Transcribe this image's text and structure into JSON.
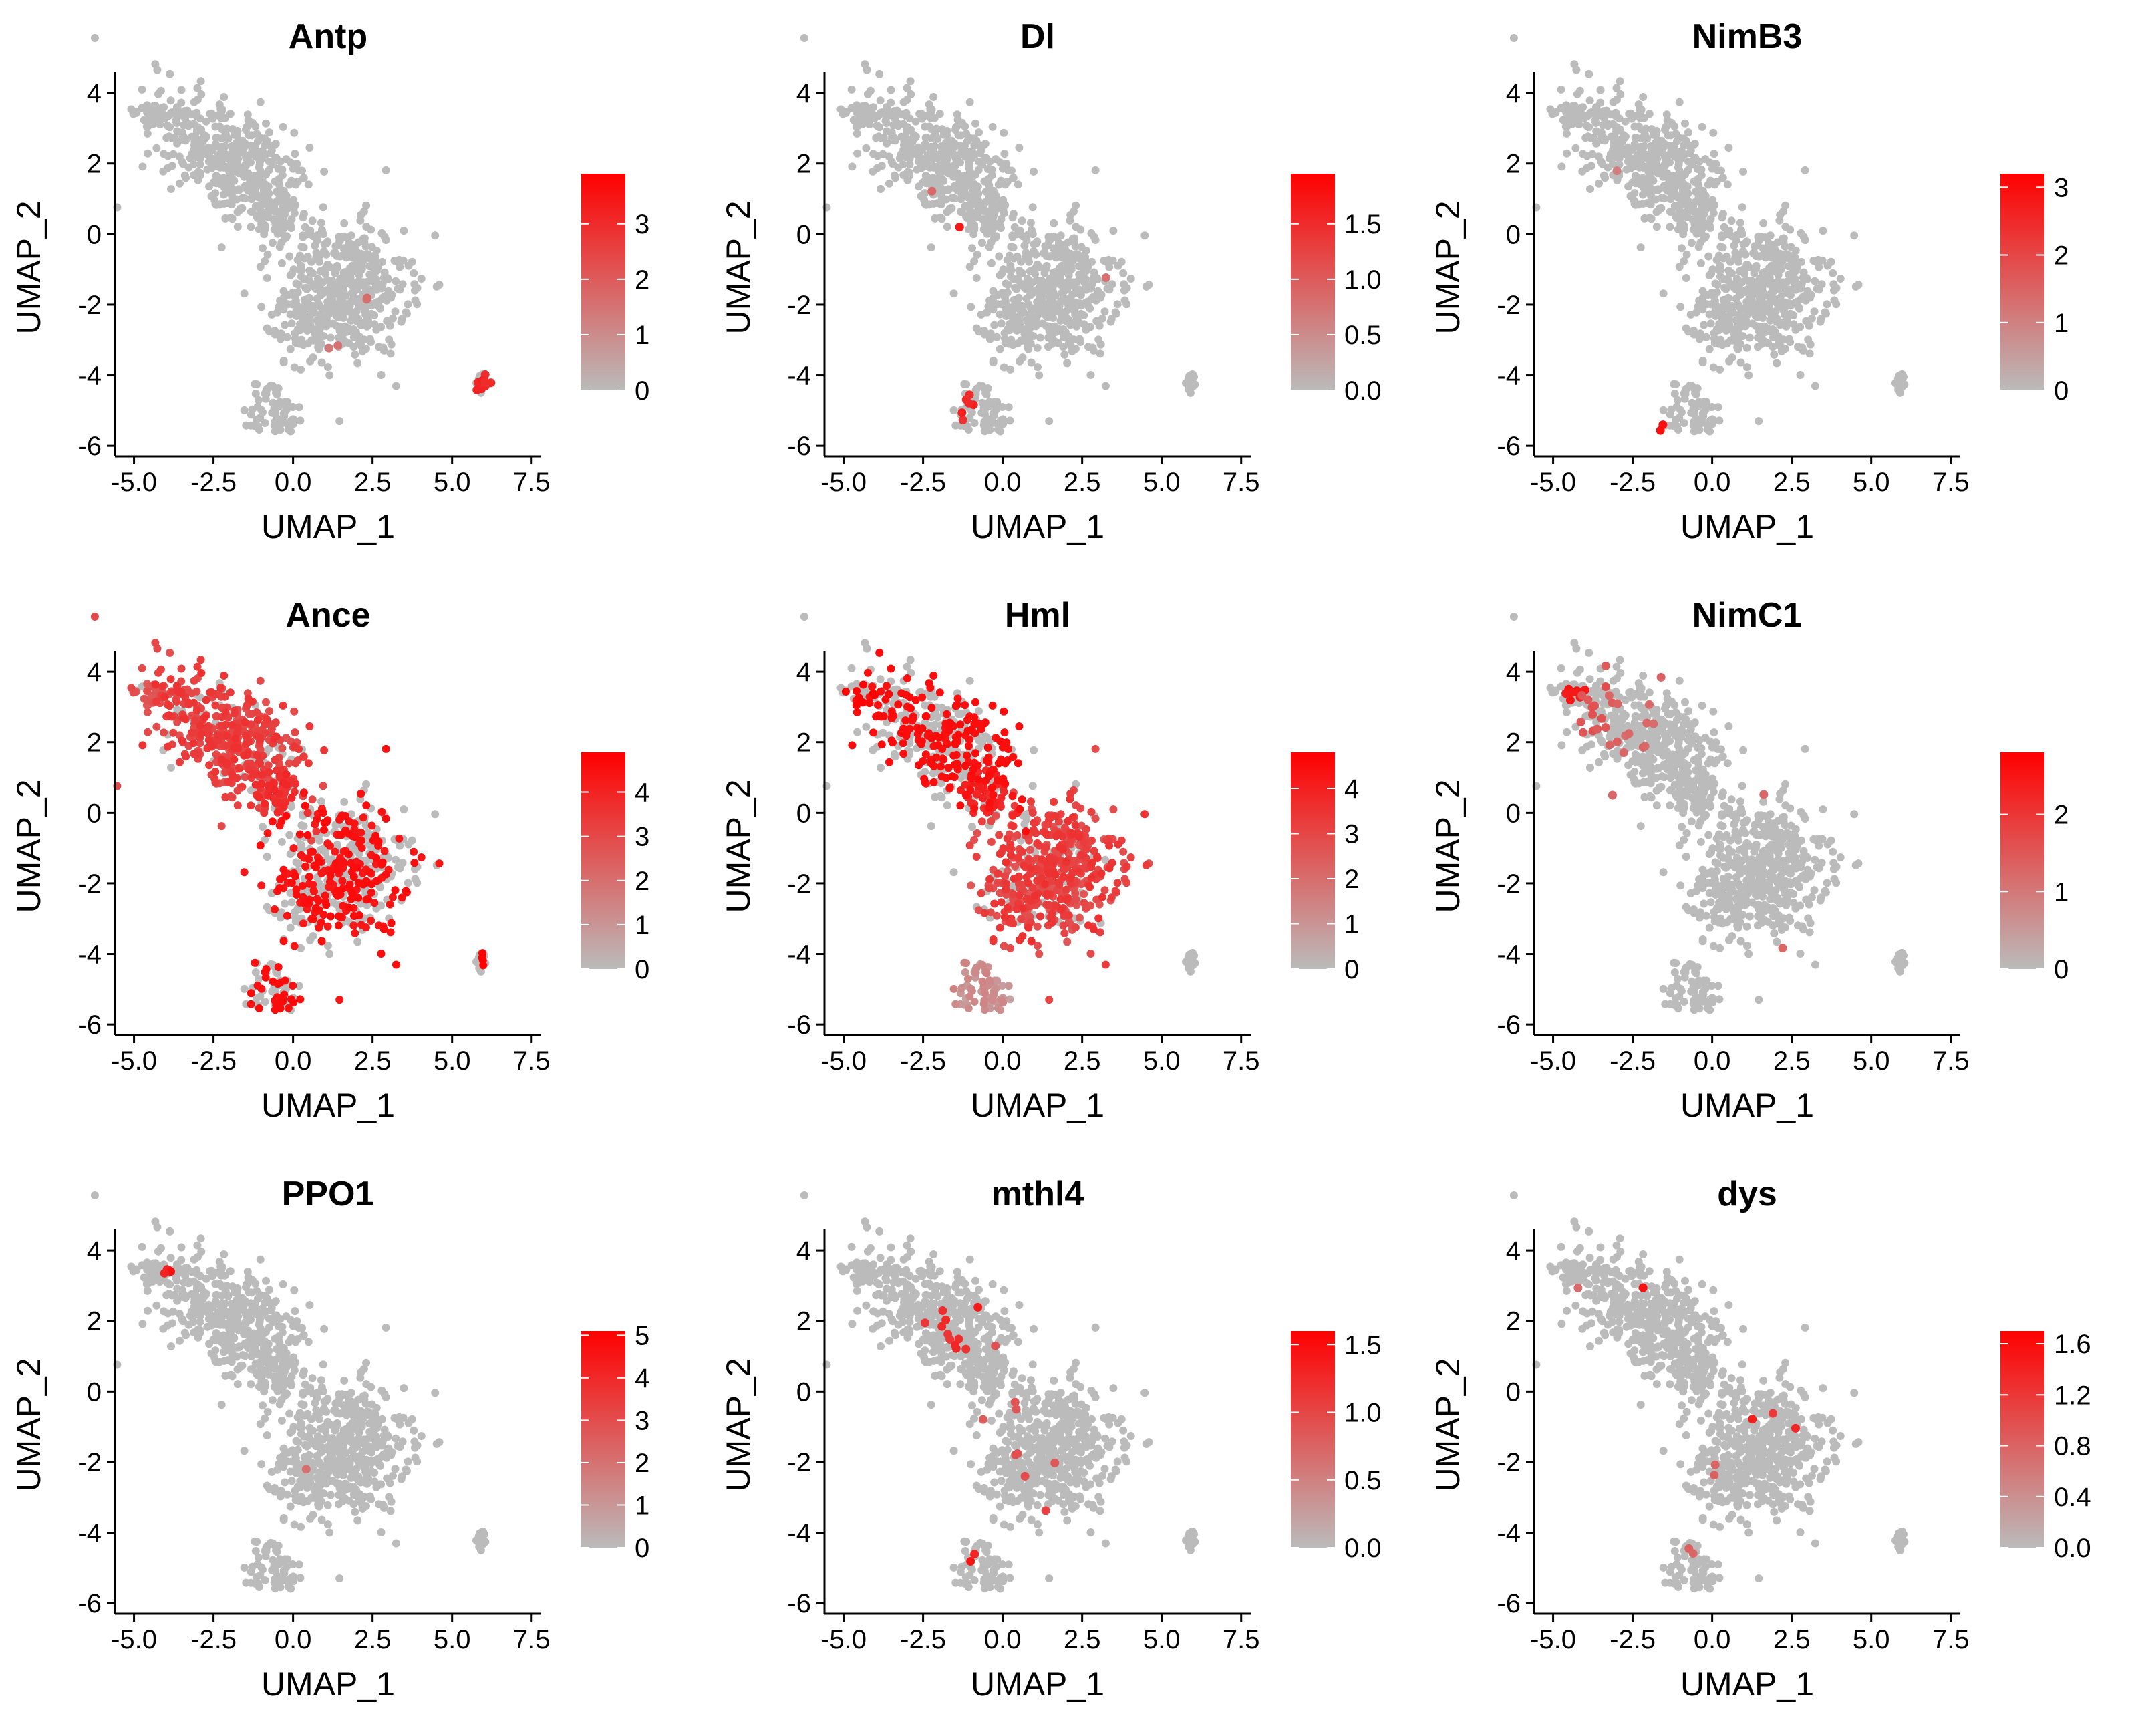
{
  "chart_data": [
    {
      "type": "scatter",
      "title": "Antp",
      "xlabel": "UMAP_1",
      "ylabel": "UMAP_2",
      "xlim": [
        -5.6,
        7.8
      ],
      "ylim": [
        -6.3,
        4.4
      ],
      "xticks": [
        -5.0,
        -2.5,
        0.0,
        2.5,
        5.0,
        7.5
      ],
      "xtick_labels": [
        "-5.0",
        "-2.5",
        "0.0",
        "2.5",
        "5.0",
        "7.5"
      ],
      "yticks": [
        -6,
        -4,
        -2,
        0,
        2,
        4
      ],
      "ytick_labels": [
        "-6",
        "-4",
        "-2",
        "0",
        "2",
        "4"
      ],
      "color_scale": {
        "low": "#bbbbbb",
        "high": "#ff0000",
        "min": 0,
        "max": 3.9
      },
      "legend_ticks": [
        0,
        1,
        2,
        3
      ],
      "legend_labels": [
        "0",
        "1",
        "2",
        "3"
      ],
      "expression_pattern": "sparse",
      "hotspots": [
        {
          "x": 5.95,
          "y": -4.2,
          "level": 0.85,
          "spread": 0.12,
          "count": 15
        },
        {
          "x": 1.2,
          "y": -3.3,
          "level": 0.4,
          "spread": 0.1,
          "count": 2
        },
        {
          "x": 2.3,
          "y": -1.8,
          "level": 0.45,
          "spread": 0.1,
          "count": 2
        }
      ]
    },
    {
      "type": "scatter",
      "title": "Dl",
      "xlabel": "UMAP_1",
      "ylabel": "UMAP_2",
      "xlim": [
        -5.6,
        7.8
      ],
      "ylim": [
        -6.3,
        4.4
      ],
      "xticks": [
        -5.0,
        -2.5,
        0.0,
        2.5,
        5.0,
        7.5
      ],
      "xtick_labels": [
        "-5.0",
        "-2.5",
        "0.0",
        "2.5",
        "5.0",
        "7.5"
      ],
      "yticks": [
        -6,
        -4,
        -2,
        0,
        2,
        4
      ],
      "ytick_labels": [
        "-6",
        "-4",
        "-2",
        "0",
        "2",
        "4"
      ],
      "color_scale": {
        "low": "#bbbbbb",
        "high": "#ff0000",
        "min": 0,
        "max": 1.95
      },
      "legend_ticks": [
        0.0,
        0.5,
        1.0,
        1.5
      ],
      "legend_labels": [
        "0.0",
        "0.5",
        "1.0",
        "1.5"
      ],
      "expression_pattern": "sparse",
      "hotspots": [
        {
          "x": -1.4,
          "y": 0.2,
          "level": 0.95,
          "spread": 0.05,
          "count": 1
        },
        {
          "x": -1.1,
          "y": -4.7,
          "level": 0.9,
          "spread": 0.1,
          "count": 4
        },
        {
          "x": -1.3,
          "y": -5.1,
          "level": 0.85,
          "spread": 0.08,
          "count": 2
        },
        {
          "x": -2.2,
          "y": 1.2,
          "level": 0.5,
          "spread": 0.08,
          "count": 1
        },
        {
          "x": 3.2,
          "y": -1.2,
          "level": 0.45,
          "spread": 0.08,
          "count": 1
        }
      ]
    },
    {
      "type": "scatter",
      "title": "NimB3",
      "xlabel": "UMAP_1",
      "ylabel": "UMAP_2",
      "xlim": [
        -5.6,
        7.8
      ],
      "ylim": [
        -6.3,
        4.4
      ],
      "xticks": [
        -5.0,
        -2.5,
        0.0,
        2.5,
        5.0,
        7.5
      ],
      "xtick_labels": [
        "-5.0",
        "-2.5",
        "0.0",
        "2.5",
        "5.0",
        "7.5"
      ],
      "yticks": [
        -6,
        -4,
        -2,
        0,
        2,
        4
      ],
      "ytick_labels": [
        "-6",
        "-4",
        "-2",
        "0",
        "2",
        "4"
      ],
      "color_scale": {
        "low": "#bbbbbb",
        "high": "#ff0000",
        "min": 0,
        "max": 3.2
      },
      "legend_ticks": [
        0,
        1,
        2,
        3
      ],
      "legend_labels": [
        "0",
        "1",
        "2",
        "3"
      ],
      "expression_pattern": "sparse",
      "hotspots": [
        {
          "x": -1.6,
          "y": -5.5,
          "level": 0.95,
          "spread": 0.06,
          "count": 2
        },
        {
          "x": -3.0,
          "y": 1.8,
          "level": 0.35,
          "spread": 0.1,
          "count": 1
        }
      ]
    },
    {
      "type": "scatter",
      "title": "Ance",
      "xlabel": "UMAP_1",
      "ylabel": "UMAP_2",
      "xlim": [
        -5.6,
        7.8
      ],
      "ylim": [
        -6.3,
        4.4
      ],
      "xticks": [
        -5.0,
        -2.5,
        0.0,
        2.5,
        5.0,
        7.5
      ],
      "xtick_labels": [
        "-5.0",
        "-2.5",
        "0.0",
        "2.5",
        "5.0",
        "7.5"
      ],
      "yticks": [
        -6,
        -4,
        -2,
        0,
        2,
        4
      ],
      "ytick_labels": [
        "-6",
        "-4",
        "-2",
        "0",
        "2",
        "4"
      ],
      "color_scale": {
        "low": "#bbbbbb",
        "high": "#ff0000",
        "min": 0,
        "max": 4.9
      },
      "legend_ticks": [
        0,
        1,
        2,
        3,
        4
      ],
      "legend_labels": [
        "0",
        "1",
        "2",
        "3",
        "4"
      ],
      "expression_pattern": "broad; highest in lower cluster and small island",
      "hotspots": []
    },
    {
      "type": "scatter",
      "title": "Hml",
      "xlabel": "UMAP_1",
      "ylabel": "UMAP_2",
      "xlim": [
        -5.6,
        7.8
      ],
      "ylim": [
        -6.3,
        4.4
      ],
      "xticks": [
        -5.0,
        -2.5,
        0.0,
        2.5,
        5.0,
        7.5
      ],
      "xtick_labels": [
        "-5.0",
        "-2.5",
        "0.0",
        "2.5",
        "5.0",
        "7.5"
      ],
      "yticks": [
        -6,
        -4,
        -2,
        0,
        2,
        4
      ],
      "ytick_labels": [
        "-6",
        "-4",
        "-2",
        "0",
        "2",
        "4"
      ],
      "color_scale": {
        "low": "#bbbbbb",
        "high": "#ff0000",
        "min": 0,
        "max": 4.8
      },
      "legend_ticks": [
        0,
        1,
        2,
        3,
        4
      ],
      "legend_labels": [
        "0",
        "1",
        "2",
        "3",
        "4"
      ],
      "expression_pattern": "broad; highest in upper cluster",
      "hotspots": []
    },
    {
      "type": "scatter",
      "title": "NimC1",
      "xlabel": "UMAP_1",
      "ylabel": "UMAP_2",
      "xlim": [
        -5.6,
        7.8
      ],
      "ylim": [
        -6.3,
        4.4
      ],
      "xticks": [
        -5.0,
        -2.5,
        0.0,
        2.5,
        5.0,
        7.5
      ],
      "xtick_labels": [
        "-5.0",
        "-2.5",
        "0.0",
        "2.5",
        "5.0",
        "7.5"
      ],
      "yticks": [
        -6,
        -4,
        -2,
        0,
        2,
        4
      ],
      "ytick_labels": [
        "-6",
        "-4",
        "-2",
        "0",
        "2",
        "4"
      ],
      "color_scale": {
        "low": "#bbbbbb",
        "high": "#ff0000",
        "min": 0,
        "max": 2.8
      },
      "legend_ticks": [
        0,
        1,
        2
      ],
      "legend_labels": [
        "0",
        "1",
        "2"
      ],
      "expression_pattern": "upper-left tip",
      "hotspots": [
        {
          "x": -4.4,
          "y": 3.4,
          "level": 0.95,
          "spread": 0.15,
          "count": 10
        },
        {
          "x": -3.8,
          "y": 3.0,
          "level": 0.6,
          "spread": 0.4,
          "count": 14
        },
        {
          "x": -2.5,
          "y": 2.2,
          "level": 0.5,
          "spread": 0.6,
          "count": 14
        },
        {
          "x": 1.5,
          "y": 0.6,
          "level": 0.5,
          "spread": 0.1,
          "count": 1
        },
        {
          "x": 2.2,
          "y": -3.9,
          "level": 0.5,
          "spread": 0.1,
          "count": 1
        }
      ]
    },
    {
      "type": "scatter",
      "title": "PPO1",
      "xlabel": "UMAP_1",
      "ylabel": "UMAP_2",
      "xlim": [
        -5.6,
        7.8
      ],
      "ylim": [
        -6.3,
        4.4
      ],
      "xticks": [
        -5.0,
        -2.5,
        0.0,
        2.5,
        5.0,
        7.5
      ],
      "xtick_labels": [
        "-5.0",
        "-2.5",
        "0.0",
        "2.5",
        "5.0",
        "7.5"
      ],
      "yticks": [
        -6,
        -4,
        -2,
        0,
        2,
        4
      ],
      "ytick_labels": [
        "-6",
        "-4",
        "-2",
        "0",
        "2",
        "4"
      ],
      "color_scale": {
        "low": "#bbbbbb",
        "high": "#ff0000",
        "min": 0,
        "max": 5.1
      },
      "legend_ticks": [
        0,
        1,
        2,
        3,
        4,
        5
      ],
      "legend_labels": [
        "0",
        "1",
        "2",
        "3",
        "4",
        "5"
      ],
      "expression_pattern": "sparse",
      "hotspots": [
        {
          "x": -3.9,
          "y": 3.4,
          "level": 0.95,
          "spread": 0.07,
          "count": 4
        },
        {
          "x": 0.3,
          "y": -2.1,
          "level": 0.45,
          "spread": 0.08,
          "count": 1
        }
      ]
    },
    {
      "type": "scatter",
      "title": "mthl4",
      "xlabel": "UMAP_1",
      "ylabel": "UMAP_2",
      "xlim": [
        -5.6,
        7.8
      ],
      "ylim": [
        -6.3,
        4.4
      ],
      "xticks": [
        -5.0,
        -2.5,
        0.0,
        2.5,
        5.0,
        7.5
      ],
      "xtick_labels": [
        "-5.0",
        "-2.5",
        "0.0",
        "2.5",
        "5.0",
        "7.5"
      ],
      "yticks": [
        -6,
        -4,
        -2,
        0,
        2,
        4
      ],
      "ytick_labels": [
        "-6",
        "-4",
        "-2",
        "0",
        "2",
        "4"
      ],
      "color_scale": {
        "low": "#bbbbbb",
        "high": "#ff0000",
        "min": 0,
        "max": 1.6
      },
      "legend_ticks": [
        0.0,
        0.5,
        1.0,
        1.5
      ],
      "legend_labels": [
        "0.0",
        "0.5",
        "1.0",
        "1.5"
      ],
      "expression_pattern": "scattered",
      "hotspots": [
        {
          "x": -0.8,
          "y": 2.4,
          "level": 0.95,
          "spread": 0.05,
          "count": 1
        },
        {
          "x": -2.6,
          "y": 2.5,
          "level": 0.8,
          "spread": 0.4,
          "count": 4
        },
        {
          "x": -1.5,
          "y": 1.5,
          "level": 0.8,
          "spread": 0.5,
          "count": 6
        },
        {
          "x": -1.0,
          "y": -4.7,
          "level": 0.9,
          "spread": 0.08,
          "count": 2
        },
        {
          "x": 0.5,
          "y": -1.0,
          "level": 0.6,
          "spread": 1.2,
          "count": 8
        },
        {
          "x": 1.3,
          "y": -3.3,
          "level": 0.7,
          "spread": 0.1,
          "count": 1
        }
      ]
    },
    {
      "type": "scatter",
      "title": "dys",
      "xlabel": "UMAP_1",
      "ylabel": "UMAP_2",
      "xlim": [
        -5.6,
        7.8
      ],
      "ylim": [
        -6.3,
        4.4
      ],
      "xticks": [
        -5.0,
        -2.5,
        0.0,
        2.5,
        5.0,
        7.5
      ],
      "xtick_labels": [
        "-5.0",
        "-2.5",
        "0.0",
        "2.5",
        "5.0",
        "7.5"
      ],
      "yticks": [
        -6,
        -4,
        -2,
        0,
        2,
        4
      ],
      "ytick_labels": [
        "-6",
        "-4",
        "-2",
        "0",
        "2",
        "4"
      ],
      "color_scale": {
        "low": "#bbbbbb",
        "high": "#ff0000",
        "min": 0,
        "max": 1.7
      },
      "legend_ticks": [
        0.0,
        0.4,
        0.8,
        1.2,
        1.6
      ],
      "legend_labels": [
        "0.0",
        "0.4",
        "0.8",
        "1.2",
        "1.6"
      ],
      "expression_pattern": "sparse",
      "hotspots": [
        {
          "x": -2.2,
          "y": 3.0,
          "level": 0.95,
          "spread": 0.05,
          "count": 1
        },
        {
          "x": 1.3,
          "y": -0.8,
          "level": 0.9,
          "spread": 0.05,
          "count": 1
        },
        {
          "x": 1.9,
          "y": -0.6,
          "level": 0.7,
          "spread": 0.05,
          "count": 1
        },
        {
          "x": 2.7,
          "y": -1.0,
          "level": 0.9,
          "spread": 0.05,
          "count": 1
        },
        {
          "x": -4.2,
          "y": 2.9,
          "level": 0.5,
          "spread": 0.05,
          "count": 1
        },
        {
          "x": 0.0,
          "y": -2.2,
          "level": 0.5,
          "spread": 0.1,
          "count": 2
        },
        {
          "x": -0.7,
          "y": -4.7,
          "level": 0.5,
          "spread": 0.1,
          "count": 2
        }
      ]
    }
  ]
}
